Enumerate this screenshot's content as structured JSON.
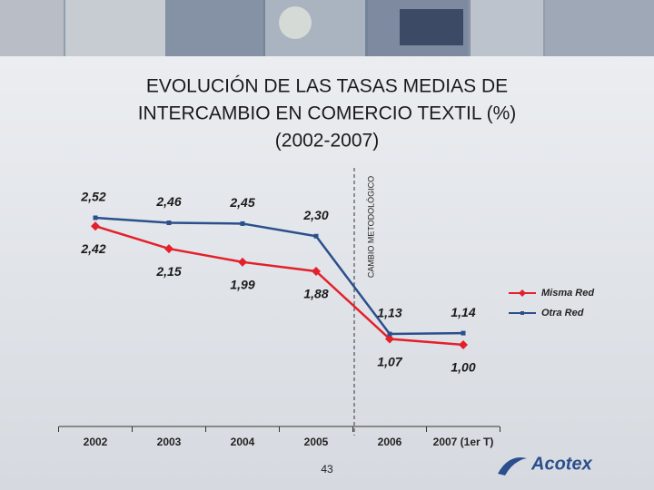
{
  "chart_data": {
    "type": "line",
    "title": [
      "EVOLUCIÓN DE LAS TASAS MEDIAS DE",
      "INTERCAMBIO EN COMERCIO TEXTIL (%)",
      "(2002-2007)"
    ],
    "categories": [
      "2002",
      "2003",
      "2004",
      "2005",
      "2006",
      "2007 (1er T)"
    ],
    "series": [
      {
        "name": "Misma Red",
        "color": "#e3202b",
        "marker": "diamond",
        "values": [
          2.42,
          2.15,
          1.99,
          1.88,
          1.07,
          1.0
        ],
        "value_labels": [
          "2,42",
          "2,15",
          "1,99",
          "1,88",
          "1,07",
          "1,00"
        ]
      },
      {
        "name": "Otra Red",
        "color": "#2b4f8c",
        "marker": "square",
        "values": [
          2.52,
          2.46,
          2.45,
          2.3,
          1.13,
          1.14
        ],
        "value_labels": [
          "2,52",
          "2,46",
          "2,45",
          "2,30",
          "1,13",
          "1,14"
        ]
      }
    ],
    "annotation": "CAMBIO METODOLÓGICO",
    "legend": "right"
  },
  "page_number": "43",
  "logo": "Acotex"
}
